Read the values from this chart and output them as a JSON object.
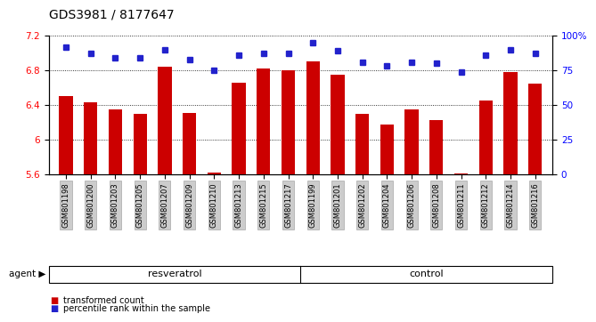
{
  "title": "GDS3981 / 8177647",
  "samples": [
    "GSM801198",
    "GSM801200",
    "GSM801203",
    "GSM801205",
    "GSM801207",
    "GSM801209",
    "GSM801210",
    "GSM801213",
    "GSM801215",
    "GSM801217",
    "GSM801199",
    "GSM801201",
    "GSM801202",
    "GSM801204",
    "GSM801206",
    "GSM801208",
    "GSM801211",
    "GSM801212",
    "GSM801214",
    "GSM801216"
  ],
  "bar_values": [
    6.5,
    6.43,
    6.35,
    6.3,
    6.84,
    6.31,
    5.62,
    6.66,
    6.82,
    6.8,
    6.9,
    6.75,
    6.3,
    6.17,
    6.35,
    6.22,
    5.61,
    6.45,
    6.78,
    6.65
  ],
  "dot_values": [
    92,
    87,
    84,
    84,
    90,
    83,
    75,
    86,
    87,
    87,
    95,
    89,
    81,
    78,
    81,
    80,
    74,
    86,
    90,
    87
  ],
  "resveratrol_count": 10,
  "control_count": 10,
  "ylim_left": [
    5.6,
    7.2
  ],
  "ylim_right": [
    0,
    100
  ],
  "yticks_left": [
    5.6,
    6.0,
    6.4,
    6.8,
    7.2
  ],
  "ytick_labels_left": [
    "5.6",
    "6",
    "6.4",
    "6.8",
    "7.2"
  ],
  "yticks_right": [
    0,
    25,
    50,
    75,
    100
  ],
  "ytick_labels_right": [
    "0",
    "25",
    "50",
    "75",
    "100%"
  ],
  "bar_color": "#CC0000",
  "dot_color": "#2222CC",
  "resveratrol_color": "#AAFFAA",
  "control_color": "#55EE55",
  "grid_color": "#000000",
  "legend_tc": "transformed count",
  "legend_pr": "percentile rank within the sample",
  "agent_label": "agent",
  "resveratrol_label": "resveratrol",
  "control_label": "control",
  "title_fontsize": 10,
  "tick_fontsize": 7.5,
  "bar_width": 0.55
}
